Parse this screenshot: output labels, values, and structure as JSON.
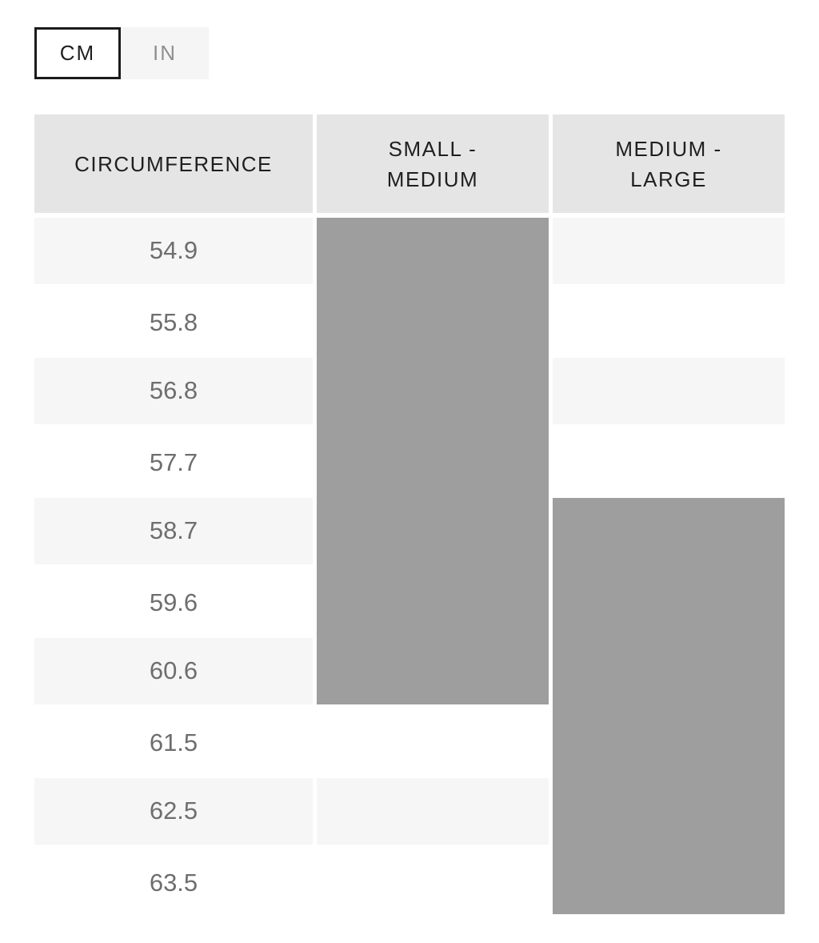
{
  "unit_toggle": {
    "cm_label": "CM",
    "in_label": "IN",
    "selected": "CM"
  },
  "table": {
    "headers": {
      "circumference": "CIRCUMFERENCE",
      "small_medium": "SMALL - MEDIUM",
      "medium_large": "MEDIUM - LARGE"
    },
    "rows": [
      {
        "value": "54.9"
      },
      {
        "value": "55.8"
      },
      {
        "value": "56.8"
      },
      {
        "value": "57.7"
      },
      {
        "value": "58.7"
      },
      {
        "value": "59.6"
      },
      {
        "value": "60.6"
      },
      {
        "value": "61.5"
      },
      {
        "value": "62.5"
      },
      {
        "value": "63.5"
      }
    ],
    "ranges": {
      "small_medium": {
        "from": "54.9",
        "to": "60.6"
      },
      "medium_large": {
        "from": "58.7",
        "to": "63.5"
      }
    },
    "unit": "cm"
  },
  "colors": {
    "header_bg": "#e5e5e5",
    "stripe_bg": "#f6f6f6",
    "range_bar": "#9e9e9e",
    "value_text": "#6e6e6e",
    "header_text": "#1f1f1f",
    "active_toggle_border": "#1b1b1b",
    "inactive_toggle_bg": "#f5f5f5",
    "inactive_toggle_text": "#8f8f8f"
  }
}
